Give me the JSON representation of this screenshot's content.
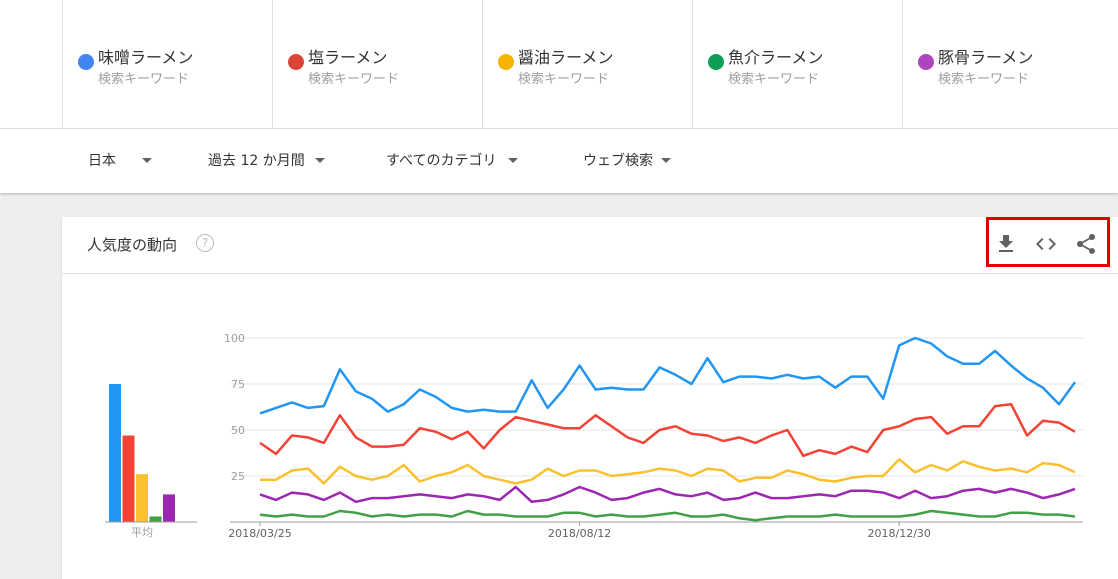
{
  "terms": [
    {
      "name": "味噌ラーメン",
      "type": "検索キーワード",
      "color": "#4285f4"
    },
    {
      "name": "塩ラーメン",
      "type": "検索キーワード",
      "color": "#db4437"
    },
    {
      "name": "醤油ラーメン",
      "type": "検索キーワード",
      "color": "#f4b400"
    },
    {
      "name": "魚介ラーメン",
      "type": "検索キーワード",
      "color": "#0f9d58"
    },
    {
      "name": "豚骨ラーメン",
      "type": "検索キーワード",
      "color": "#ab47bc"
    }
  ],
  "filters": {
    "region": "日本",
    "period": "過去 12 か月間",
    "category": "すべてのカテゴリ",
    "search_type": "ウェブ検索"
  },
  "card": {
    "title": "人気度の動向",
    "help": "?",
    "actions": [
      "download-icon",
      "embed-code-icon",
      "share-icon"
    ]
  },
  "chart_data": [
    {
      "type": "bar",
      "categories": [
        "味噌ラーメン",
        "塩ラーメン",
        "醤油ラーメン",
        "魚介ラーメン",
        "豚骨ラーメン"
      ],
      "values": [
        75,
        47,
        26,
        3,
        15
      ],
      "colors": [
        "#2196f3",
        "#f44336",
        "#fbc02d",
        "#43a047",
        "#9c27b0"
      ],
      "xlabel": "平均",
      "ylim": [
        0,
        100
      ]
    },
    {
      "type": "line",
      "x_ticks": [
        "2018/03/25",
        "2018/08/12",
        "2018/12/30"
      ],
      "y_ticks": [
        25,
        50,
        75,
        100
      ],
      "ylim": [
        0,
        100
      ],
      "series": [
        {
          "name": "味噌ラーメン",
          "color": "#2196f3",
          "values": [
            59,
            62,
            65,
            62,
            63,
            83,
            71,
            67,
            60,
            64,
            72,
            68,
            62,
            60,
            61,
            60,
            60,
            77,
            62,
            72,
            85,
            72,
            73,
            72,
            72,
            84,
            80,
            75,
            89,
            76,
            79,
            79,
            78,
            80,
            78,
            79,
            73,
            79,
            79,
            67,
            96,
            100,
            97,
            90,
            86,
            86,
            93,
            85,
            78,
            73,
            64,
            76
          ]
        },
        {
          "name": "塩ラーメン",
          "color": "#f44336",
          "values": [
            43,
            37,
            47,
            46,
            43,
            58,
            46,
            41,
            41,
            42,
            51,
            49,
            45,
            49,
            40,
            50,
            57,
            55,
            53,
            51,
            51,
            58,
            52,
            46,
            43,
            50,
            52,
            48,
            47,
            44,
            46,
            43,
            47,
            50,
            36,
            39,
            37,
            41,
            38,
            50,
            52,
            56,
            57,
            48,
            52,
            52,
            63,
            64,
            47,
            55,
            54,
            49
          ]
        },
        {
          "name": "醤油ラーメン",
          "color": "#fbc02d",
          "values": [
            23,
            23,
            28,
            29,
            21,
            30,
            25,
            23,
            25,
            31,
            22,
            25,
            27,
            31,
            25,
            23,
            21,
            23,
            29,
            25,
            28,
            28,
            25,
            26,
            27,
            29,
            28,
            25,
            29,
            28,
            22,
            24,
            24,
            28,
            26,
            23,
            22,
            24,
            25,
            25,
            34,
            27,
            31,
            28,
            33,
            30,
            28,
            29,
            27,
            32,
            31,
            27
          ]
        },
        {
          "name": "魚介ラーメン",
          "color": "#43a047",
          "values": [
            4,
            3,
            4,
            3,
            3,
            6,
            5,
            3,
            4,
            3,
            4,
            4,
            3,
            6,
            4,
            4,
            3,
            3,
            3,
            5,
            5,
            3,
            4,
            3,
            3,
            4,
            5,
            3,
            3,
            4,
            2,
            1,
            2,
            3,
            3,
            3,
            4,
            3,
            3,
            3,
            3,
            4,
            6,
            5,
            4,
            3,
            3,
            5,
            5,
            4,
            4,
            3
          ]
        },
        {
          "name": "豚骨ラーメン",
          "color": "#9c27b0",
          "values": [
            15,
            12,
            16,
            15,
            12,
            16,
            11,
            13,
            13,
            14,
            15,
            14,
            13,
            15,
            14,
            12,
            19,
            11,
            12,
            15,
            19,
            16,
            12,
            13,
            16,
            18,
            15,
            14,
            16,
            12,
            13,
            16,
            13,
            13,
            14,
            15,
            14,
            17,
            17,
            16,
            13,
            17,
            13,
            14,
            17,
            18,
            16,
            18,
            16,
            13,
            15,
            18
          ]
        }
      ]
    }
  ]
}
